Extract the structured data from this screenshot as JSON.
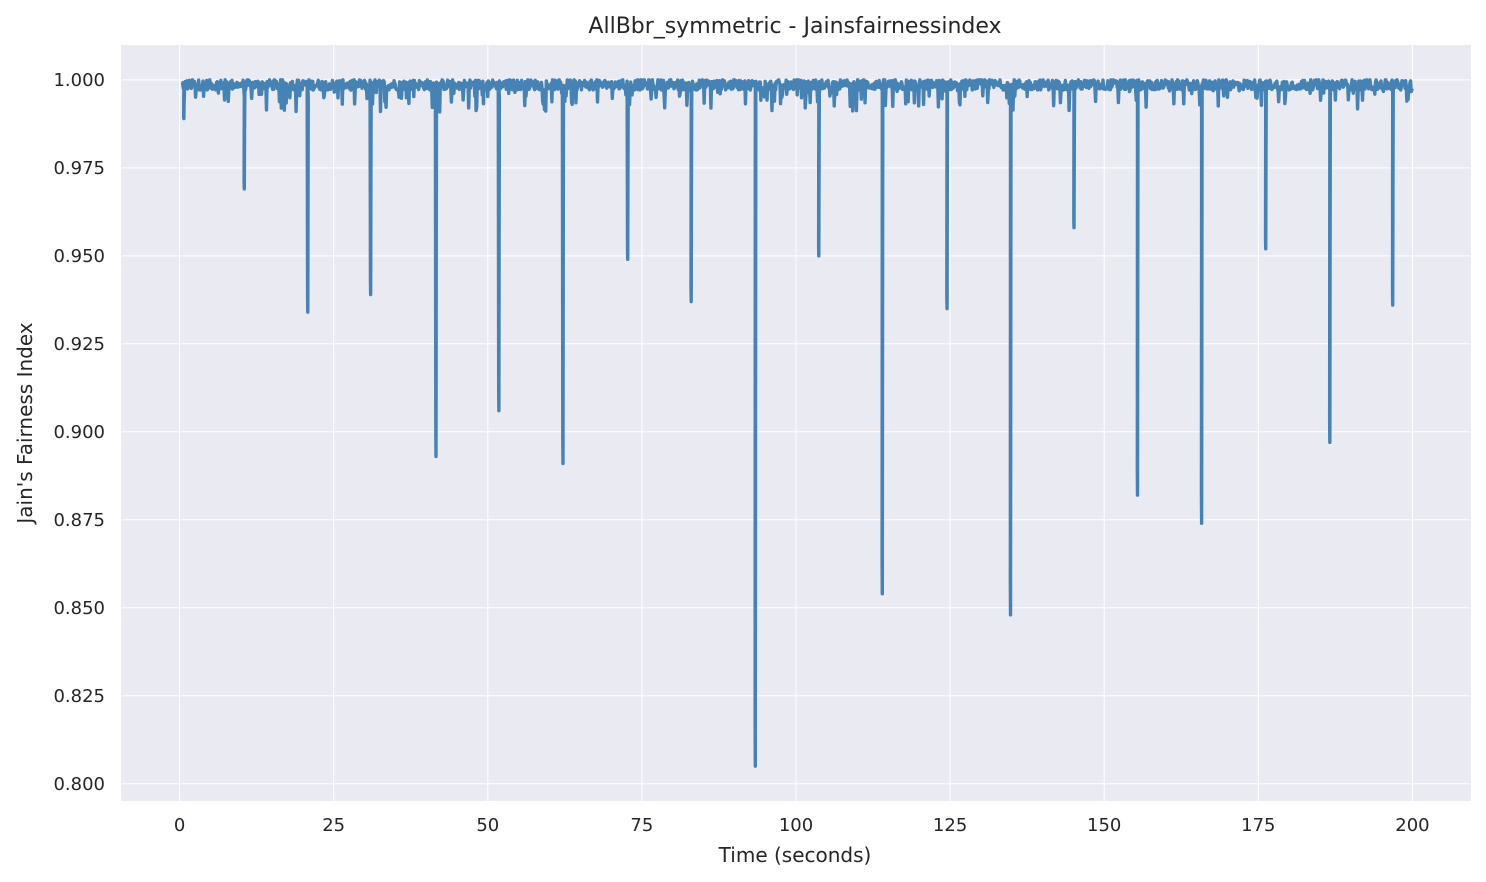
{
  "chart_data": {
    "type": "line",
    "title": "AllBbr_symmetric - Jainsfairnessindex",
    "xlabel": "Time (seconds)",
    "ylabel": "Jain's Fairness Index",
    "xlim": [
      -9.5,
      209.5
    ],
    "ylim": [
      0.7951,
      1.0099
    ],
    "xticks": [
      0,
      25,
      50,
      75,
      100,
      125,
      150,
      175,
      200
    ],
    "yticks": [
      0.8,
      0.825,
      0.85,
      0.875,
      0.9,
      0.925,
      0.95,
      0.975,
      1.0
    ],
    "xtick_labels": [
      "0",
      "25",
      "50",
      "75",
      "100",
      "125",
      "150",
      "175",
      "200"
    ],
    "ytick_labels": [
      "0.800",
      "0.825",
      "0.850",
      "0.875",
      "0.900",
      "0.925",
      "0.950",
      "0.975",
      "1.000"
    ],
    "grid": true,
    "baseline": 0.998,
    "baseline_noise": 0.003,
    "x_start": 0.3,
    "x_end": 200.0,
    "dips": [
      {
        "x": 0.7,
        "y": 0.989
      },
      {
        "x": 10.5,
        "y": 0.969
      },
      {
        "x": 20.8,
        "y": 0.934
      },
      {
        "x": 31.0,
        "y": 0.939
      },
      {
        "x": 41.6,
        "y": 0.893
      },
      {
        "x": 51.8,
        "y": 0.906
      },
      {
        "x": 62.2,
        "y": 0.891
      },
      {
        "x": 72.7,
        "y": 0.949
      },
      {
        "x": 83.0,
        "y": 0.937
      },
      {
        "x": 93.4,
        "y": 0.805
      },
      {
        "x": 103.7,
        "y": 0.95
      },
      {
        "x": 114.0,
        "y": 0.854
      },
      {
        "x": 124.5,
        "y": 0.935
      },
      {
        "x": 134.8,
        "y": 0.848
      },
      {
        "x": 145.1,
        "y": 0.958
      },
      {
        "x": 155.4,
        "y": 0.882
      },
      {
        "x": 165.8,
        "y": 0.874
      },
      {
        "x": 176.2,
        "y": 0.952
      },
      {
        "x": 186.6,
        "y": 0.897
      },
      {
        "x": 196.8,
        "y": 0.936
      }
    ],
    "line_color": "#4682b4",
    "plot_background": "#eaeaf2",
    "grid_color": "#ffffff"
  }
}
